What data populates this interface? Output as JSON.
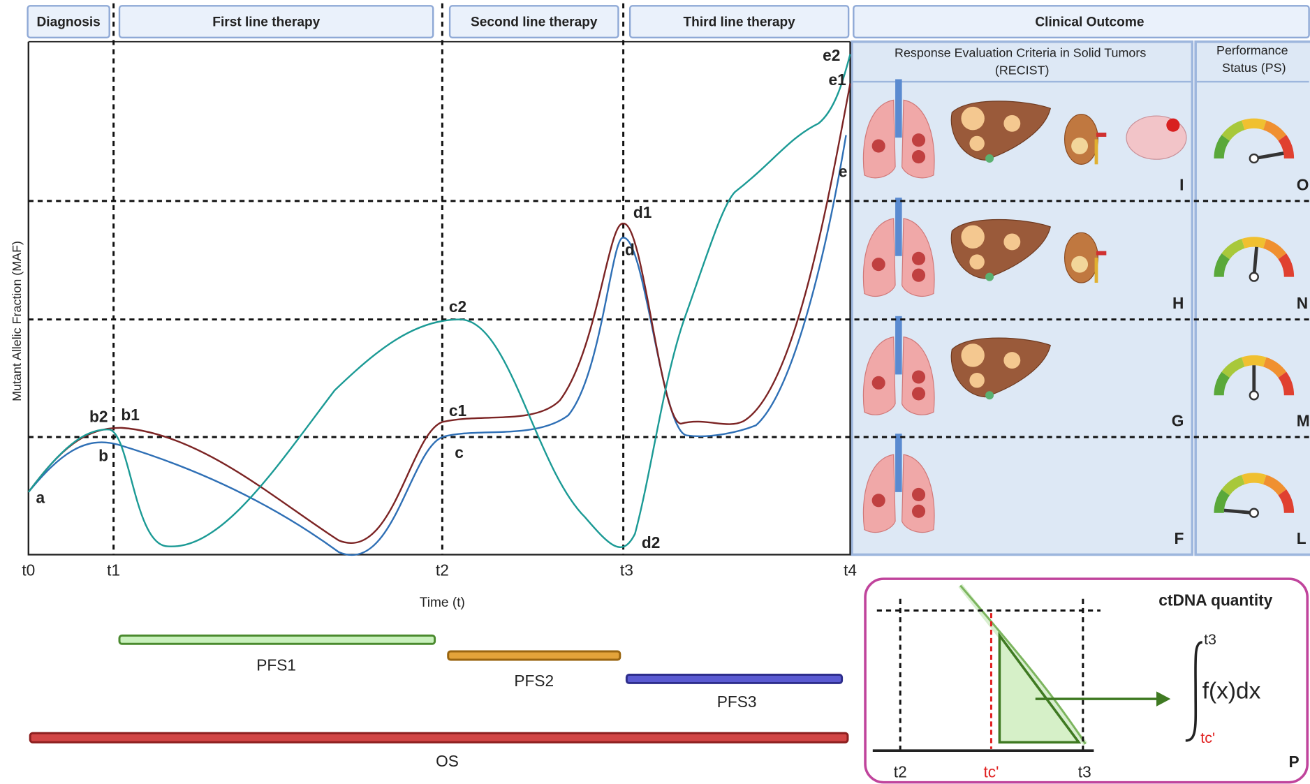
{
  "phases": [
    "Diagnosis",
    "First line therapy",
    "Second line therapy",
    "Third line therapy",
    "Clinical Outcome"
  ],
  "y_axis_label": "Mutant Allelic Fraction (MAF)",
  "x_axis_label": "Time (t)",
  "time_points": [
    "t0",
    "t1",
    "t2",
    "t3",
    "t4"
  ],
  "point_labels": [
    "a",
    "b",
    "b1",
    "b2",
    "c",
    "c1",
    "c2",
    "d",
    "d1",
    "d2",
    "e",
    "e1",
    "e2"
  ],
  "recist": {
    "title": [
      "Response Evaluation Criteria in Solid Tumors",
      "(RECIST)"
    ],
    "grades": [
      "I",
      "H",
      "G",
      "F"
    ]
  },
  "ps": {
    "title": [
      "Performance",
      "Status (PS)"
    ],
    "grades": [
      "O",
      "N",
      "M",
      "L"
    ]
  },
  "survival": [
    "PFS1",
    "PFS2",
    "PFS3",
    "OS"
  ],
  "inset": {
    "title": "ctDNA quantity",
    "axis_labels": [
      "t2",
      "tc'",
      "t3"
    ],
    "integrand": "f(x)dx",
    "upper_limit": "t3",
    "lower_limit": "tc'",
    "corner_label": "P"
  }
}
